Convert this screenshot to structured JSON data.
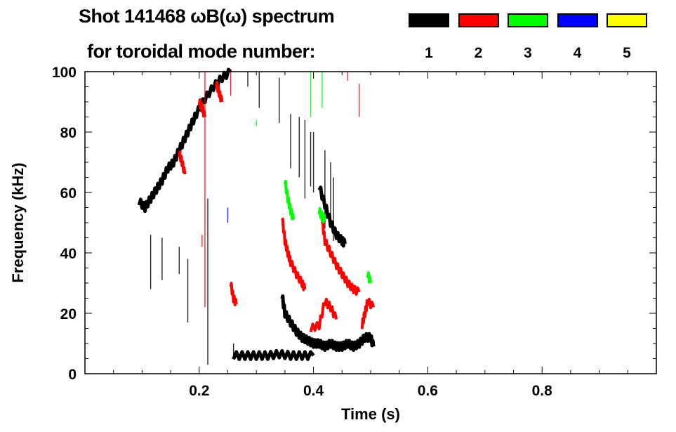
{
  "header": {
    "title_line1": "Shot 141468 ωB(ω) spectrum",
    "title_line2": "for toroidal mode number:"
  },
  "chart_data": {
    "type": "heatmap",
    "subtype": "mode-number spectrogram",
    "title": "Shot 141468 ωB(ω) spectrum for toroidal mode number:",
    "xlabel": "Time (s)",
    "ylabel": "Frequency (kHz)",
    "xlim": [
      0,
      1.0
    ],
    "ylim": [
      0,
      100
    ],
    "xticks": [
      0.2,
      0.4,
      0.6,
      0.8
    ],
    "xtick_labels": [
      "0.2",
      "0.4",
      "0.6",
      "0.8"
    ],
    "yticks": [
      0,
      20,
      40,
      60,
      80,
      100
    ],
    "ytick_labels": [
      "0",
      "20",
      "40",
      "60",
      "80",
      "100"
    ],
    "grid": false,
    "legend_placement": "top-right",
    "modes": [
      {
        "n": "1",
        "color": "#000000",
        "traces": [
          [
            [
              0.095,
              57
            ],
            [
              0.105,
              55
            ],
            [
              0.115,
              58
            ],
            [
              0.125,
              61
            ],
            [
              0.135,
              64
            ],
            [
              0.145,
              68
            ],
            [
              0.155,
              70
            ],
            [
              0.165,
              74
            ],
            [
              0.175,
              78
            ],
            [
              0.185,
              82
            ],
            [
              0.195,
              86
            ],
            [
              0.21,
              91
            ],
            [
              0.225,
              95
            ],
            [
              0.24,
              98
            ],
            [
              0.255,
              100
            ]
          ],
          [
            [
              0.26,
              6
            ],
            [
              0.28,
              6
            ],
            [
              0.3,
              6
            ],
            [
              0.32,
              6
            ],
            [
              0.34,
              6.5
            ],
            [
              0.36,
              6
            ],
            [
              0.38,
              6
            ],
            [
              0.4,
              6
            ]
          ],
          [
            [
              0.345,
              26
            ],
            [
              0.35,
              20
            ],
            [
              0.36,
              17
            ],
            [
              0.37,
              14
            ],
            [
              0.38,
              12
            ],
            [
              0.39,
              11
            ],
            [
              0.4,
              10
            ],
            [
              0.41,
              10
            ],
            [
              0.42,
              9
            ],
            [
              0.43,
              10
            ],
            [
              0.44,
              9
            ],
            [
              0.45,
              9
            ],
            [
              0.46,
              10
            ],
            [
              0.47,
              9
            ],
            [
              0.48,
              10
            ],
            [
              0.49,
              12
            ],
            [
              0.5,
              12
            ],
            [
              0.505,
              9
            ]
          ],
          [
            [
              0.41,
              62
            ],
            [
              0.42,
              56
            ],
            [
              0.43,
              50
            ],
            [
              0.44,
              46
            ],
            [
              0.45,
              44
            ],
            [
              0.455,
              43
            ]
          ]
        ],
        "lines": [
          [
            0.115,
            28,
            46
          ],
          [
            0.135,
            31,
            45
          ],
          [
            0.165,
            33,
            42
          ],
          [
            0.18,
            17,
            38
          ],
          [
            0.215,
            3,
            58
          ],
          [
            0.26,
            6,
            10
          ],
          [
            0.305,
            88,
            100
          ],
          [
            0.36,
            68,
            86
          ],
          [
            0.375,
            65,
            85
          ],
          [
            0.385,
            58,
            84
          ],
          [
            0.395,
            62,
            80
          ],
          [
            0.4,
            60,
            80
          ],
          [
            0.42,
            48,
            74
          ],
          [
            0.43,
            50,
            70
          ],
          [
            0.435,
            44,
            65
          ],
          [
            0.34,
            83,
            98
          ],
          [
            0.285,
            95,
            100
          ]
        ]
      },
      {
        "n": "2",
        "color": "#ff0000",
        "traces": [
          [
            [
              0.2,
              90
            ],
            [
              0.205,
              88
            ],
            [
              0.21,
              85
            ]
          ],
          [
            [
              0.23,
              96
            ],
            [
              0.235,
              93
            ],
            [
              0.24,
              90
            ]
          ],
          [
            [
              0.165,
              73
            ],
            [
              0.17,
              70
            ],
            [
              0.175,
              66
            ]
          ],
          [
            [
              0.345,
              52
            ],
            [
              0.35,
              44
            ],
            [
              0.355,
              40
            ],
            [
              0.36,
              37
            ],
            [
              0.37,
              33
            ],
            [
              0.38,
              30
            ],
            [
              0.385,
              28
            ]
          ],
          [
            [
              0.415,
              51
            ],
            [
              0.42,
              44
            ],
            [
              0.43,
              40
            ],
            [
              0.44,
              36
            ],
            [
              0.45,
              33
            ],
            [
              0.46,
              30
            ],
            [
              0.47,
              28
            ],
            [
              0.48,
              27
            ]
          ],
          [
            [
              0.395,
              15
            ],
            [
              0.41,
              16
            ],
            [
              0.42,
              24
            ],
            [
              0.43,
              22
            ],
            [
              0.44,
              18
            ]
          ],
          [
            [
              0.485,
              16
            ],
            [
              0.49,
              20
            ],
            [
              0.495,
              24
            ],
            [
              0.505,
              22
            ]
          ],
          [
            [
              0.255,
              30
            ],
            [
              0.26,
              25
            ],
            [
              0.265,
              23
            ]
          ]
        ],
        "lines": [
          [
            0.21,
            22,
            100
          ],
          [
            0.255,
            92,
            100
          ],
          [
            0.48,
            85,
            96
          ],
          [
            0.46,
            100,
            97
          ],
          [
            0.205,
            42,
            46
          ]
        ]
      },
      {
        "n": "3",
        "color": "#00ff00",
        "traces": [
          [
            [
              0.35,
              64
            ],
            [
              0.355,
              58
            ],
            [
              0.36,
              54
            ],
            [
              0.365,
              51
            ]
          ],
          [
            [
              0.41,
              54
            ],
            [
              0.415,
              52
            ],
            [
              0.42,
              51
            ]
          ],
          [
            [
              0.495,
              33
            ],
            [
              0.5,
              30
            ]
          ]
        ],
        "lines": [
          [
            0.415,
            88,
            100
          ],
          [
            0.395,
            85,
            100
          ],
          [
            0.3,
            82,
            84
          ]
        ]
      },
      {
        "n": "4",
        "color": "#0000ff",
        "traces": [],
        "lines": [
          [
            0.25,
            50,
            55
          ]
        ]
      },
      {
        "n": "5",
        "color": "#ffff00",
        "traces": [],
        "lines": []
      }
    ]
  }
}
